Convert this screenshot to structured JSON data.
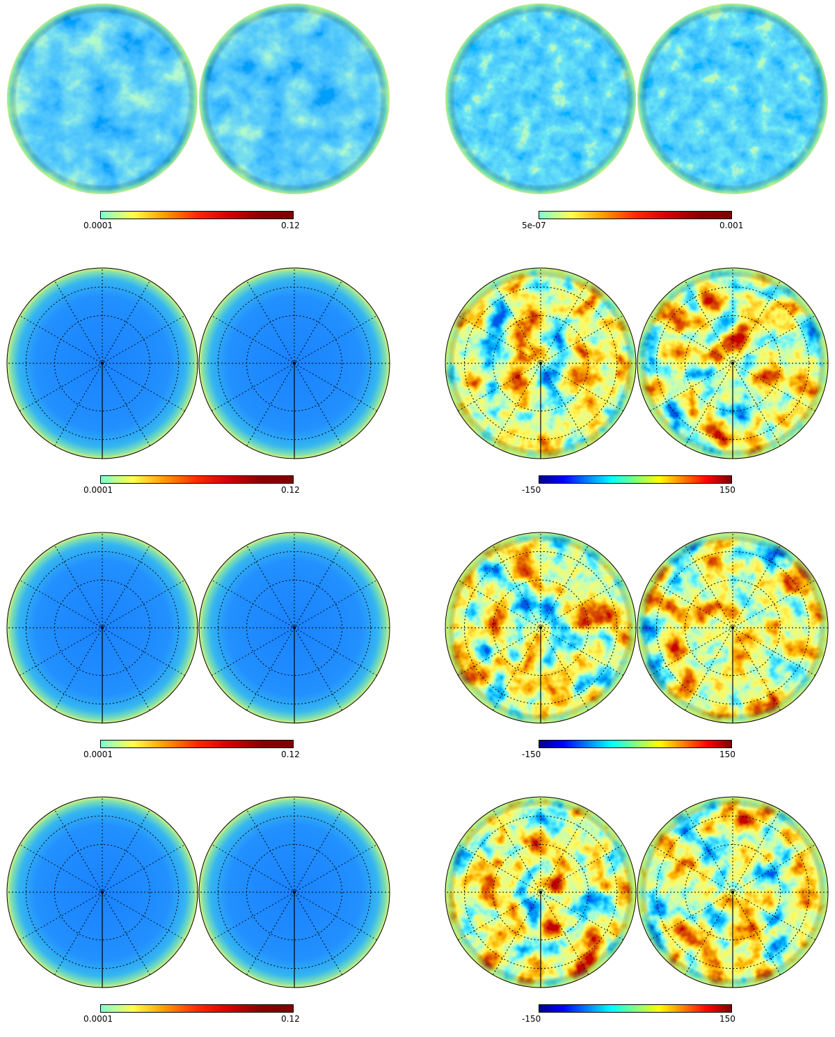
{
  "colors": {
    "hemisphere_uniform": "#1a82ff",
    "hemisphere_edge": "#7fe0b0",
    "graticule": "#000000"
  },
  "colormaps": {
    "linear_cold_to_hot": [
      "#7fffd4",
      "#ffff4d",
      "#ff9a00",
      "#ff2a00",
      "#d40000",
      "#8b0000",
      "#800000"
    ],
    "jet": [
      "#00008f",
      "#0000ff",
      "#0080ff",
      "#00ffff",
      "#80ff80",
      "#ffff00",
      "#ff8000",
      "#ff0000",
      "#800000"
    ]
  },
  "panels": [
    {
      "id": "row1-left",
      "style": "noise-blue",
      "graticule": false,
      "colorbar": {
        "min": "0.0001",
        "max": "0.12",
        "map": "linear_cold_to_hot"
      }
    },
    {
      "id": "row1-right",
      "style": "noise-blue2",
      "graticule": false,
      "colorbar": {
        "min": "5e-07",
        "max": "0.001",
        "map": "linear_cold_to_hot"
      }
    },
    {
      "id": "row2-left",
      "style": "smooth",
      "graticule": true,
      "colorbar": {
        "min": "0.0001",
        "max": "0.12",
        "map": "linear_cold_to_hot"
      }
    },
    {
      "id": "row2-right",
      "style": "jet-noise",
      "graticule": true,
      "colorbar": {
        "min": "-150",
        "max": "150",
        "map": "jet"
      }
    },
    {
      "id": "row3-left",
      "style": "smooth",
      "graticule": true,
      "colorbar": {
        "min": "0.0001",
        "max": "0.12",
        "map": "linear_cold_to_hot"
      }
    },
    {
      "id": "row3-right",
      "style": "jet-noise",
      "graticule": true,
      "colorbar": {
        "min": "-150",
        "max": "150",
        "map": "jet"
      }
    },
    {
      "id": "row4-left",
      "style": "smooth",
      "graticule": true,
      "colorbar": {
        "min": "0.0001",
        "max": "0.12",
        "map": "linear_cold_to_hot"
      }
    },
    {
      "id": "row4-right",
      "style": "jet-noise",
      "graticule": true,
      "colorbar": {
        "min": "-150",
        "max": "150",
        "map": "jet"
      }
    }
  ]
}
